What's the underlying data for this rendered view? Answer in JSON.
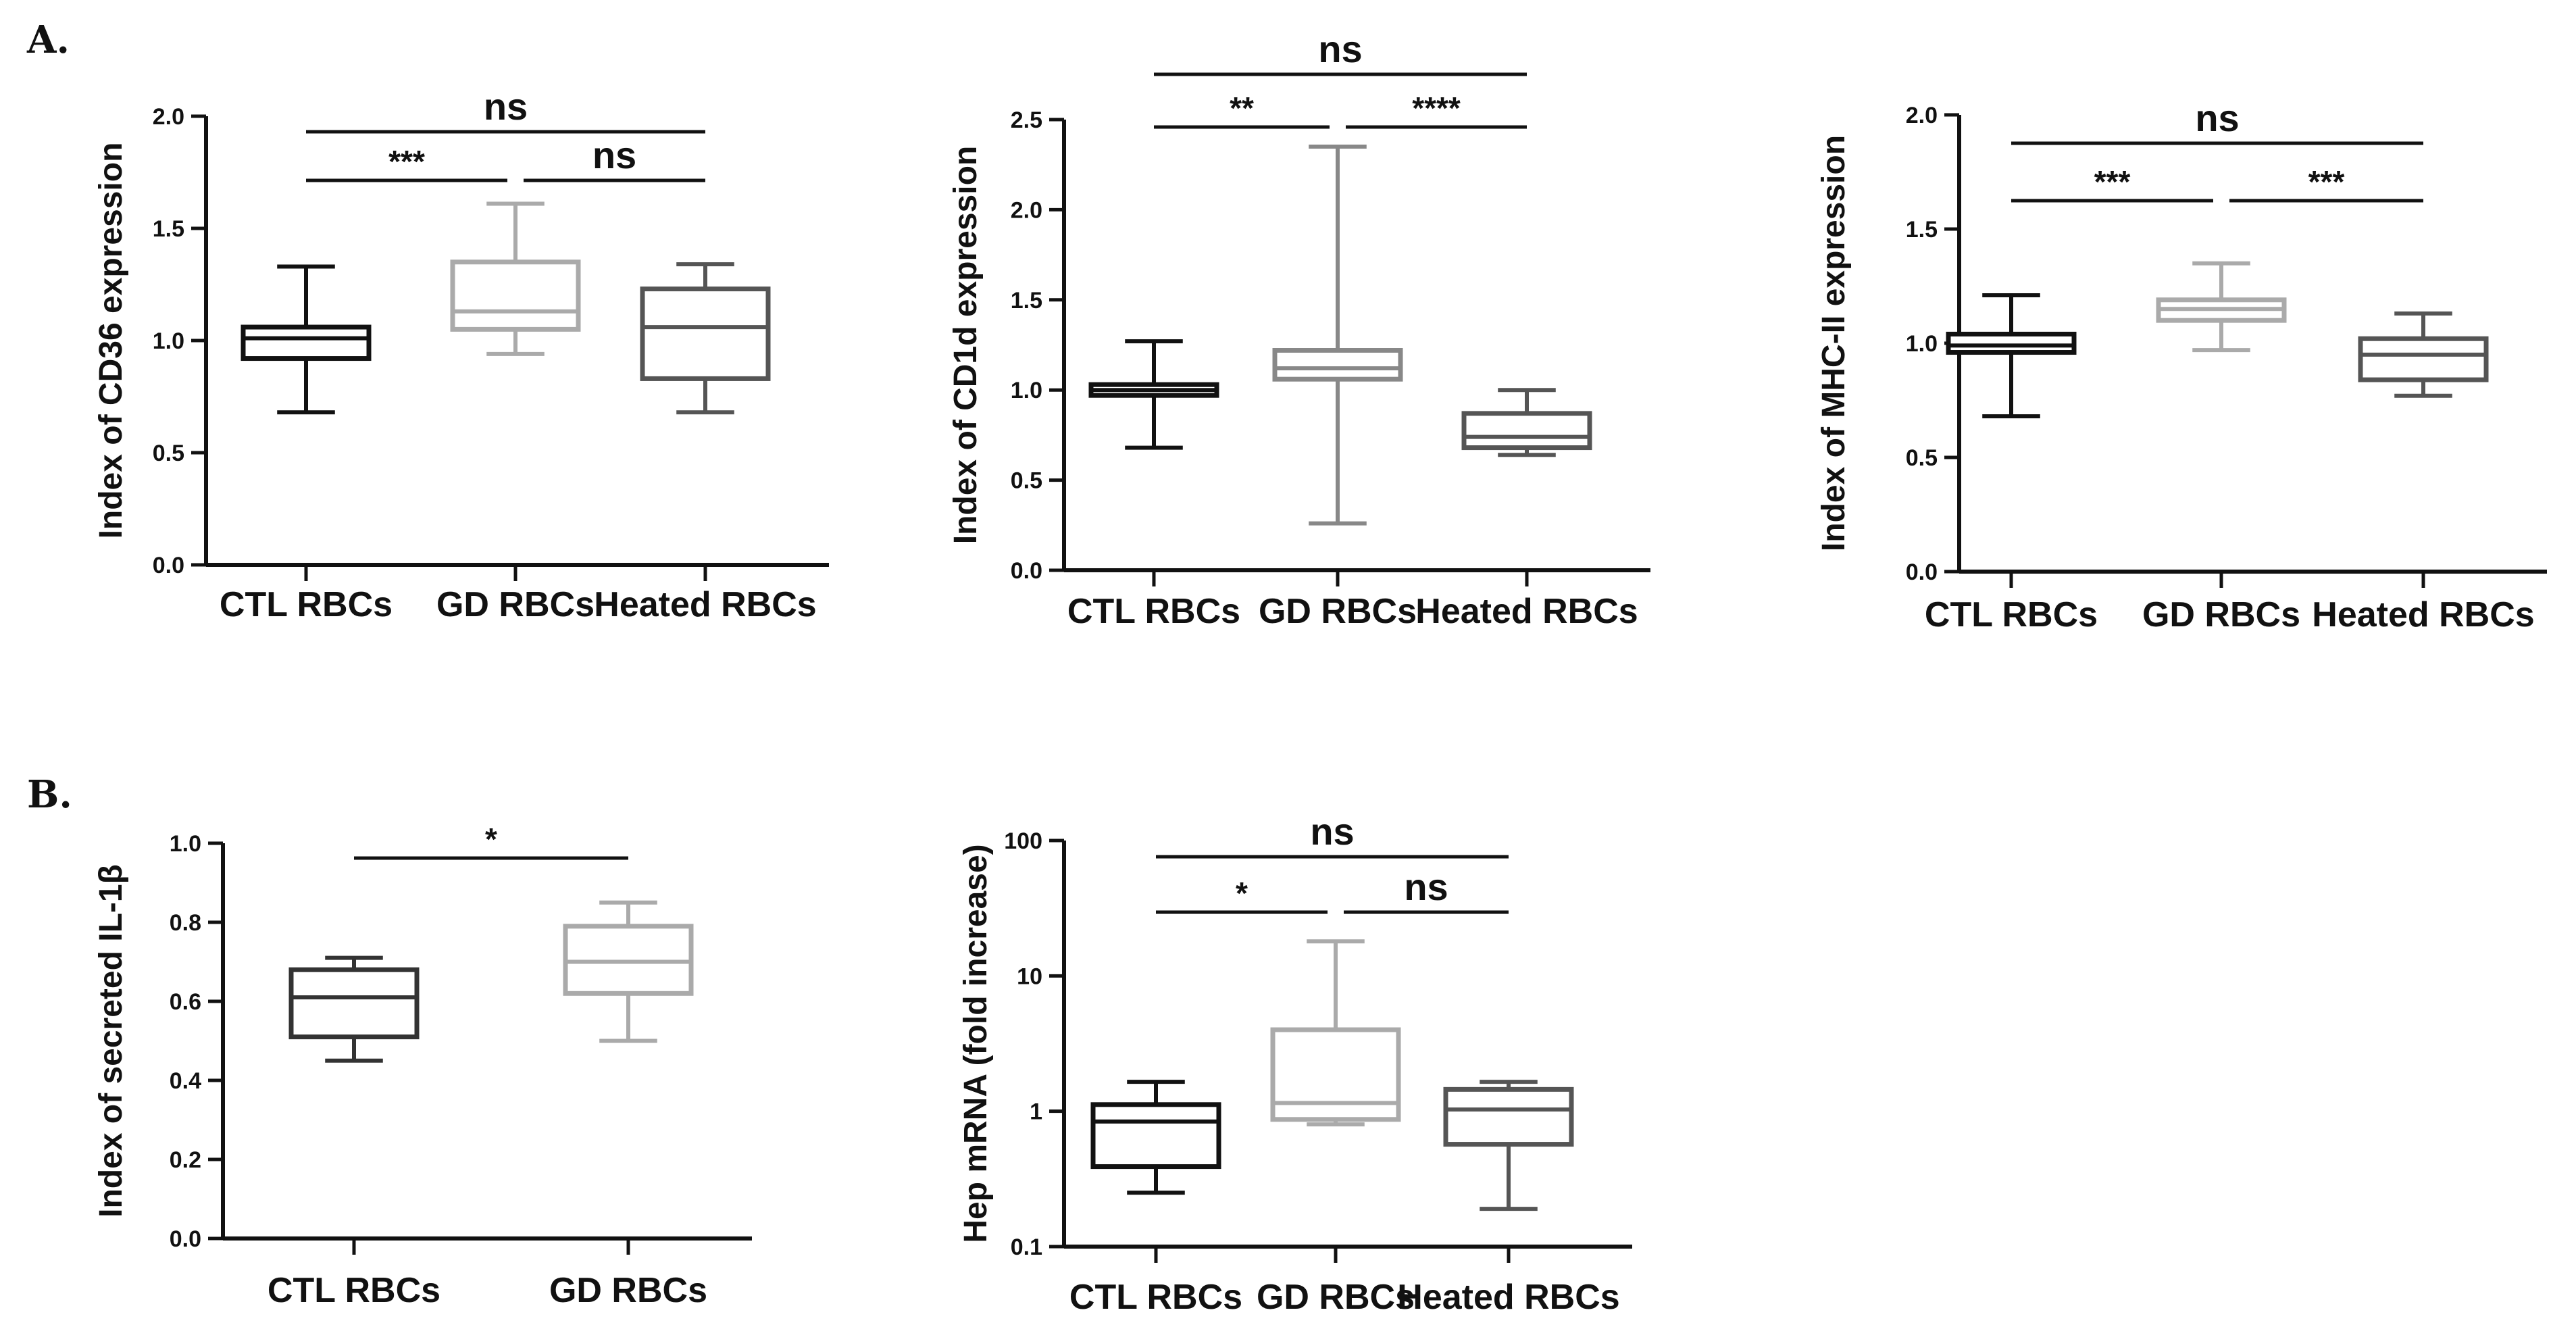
{
  "panels": [
    {
      "label": "A."
    },
    {
      "label": "B."
    }
  ],
  "chart_data": [
    {
      "type": "boxplot",
      "panel": "A.",
      "ylabel": "Index of CD36 expression",
      "scale": "linear",
      "ylim": [
        0.0,
        2.0
      ],
      "yticks": [
        "0.0",
        "0.5",
        "1.0",
        "1.5",
        "2.0"
      ],
      "categories": [
        "CTL RBCs",
        "GD RBCs",
        "Heated RBCs"
      ],
      "boxes": [
        {
          "min": 0.68,
          "q1": 0.92,
          "median": 1.01,
          "q3": 1.06,
          "max": 1.33,
          "color": "#111111"
        },
        {
          "min": 0.94,
          "q1": 1.05,
          "median": 1.13,
          "q3": 1.35,
          "max": 1.61,
          "color": "#aaaaaa"
        },
        {
          "min": 0.68,
          "q1": 0.83,
          "median": 1.06,
          "q3": 1.23,
          "max": 1.34,
          "color": "#555555"
        }
      ],
      "brackets": [
        {
          "from": 0,
          "to": 2,
          "label": "ns",
          "level": 2
        },
        {
          "from": 0,
          "to": 1,
          "label": "***",
          "level": 1
        },
        {
          "from": 1,
          "to": 2,
          "label": "ns",
          "level": 1
        }
      ]
    },
    {
      "type": "boxplot",
      "panel": "A.",
      "ylabel": "Index of CD1d expression",
      "scale": "linear",
      "ylim": [
        0.0,
        2.5
      ],
      "yticks": [
        "0.0",
        "0.5",
        "1.0",
        "1.5",
        "2.0",
        "2.5"
      ],
      "categories": [
        "CTL RBCs",
        "GD RBCs",
        "Heated RBCs"
      ],
      "boxes": [
        {
          "min": 0.68,
          "q1": 0.97,
          "median": 1.0,
          "q3": 1.03,
          "max": 1.27,
          "color": "#111111"
        },
        {
          "min": 0.26,
          "q1": 1.06,
          "median": 1.12,
          "q3": 1.22,
          "max": 2.35,
          "color": "#888888"
        },
        {
          "min": 0.64,
          "q1": 0.68,
          "median": 0.74,
          "q3": 0.87,
          "max": 1.0,
          "color": "#555555"
        }
      ],
      "brackets": [
        {
          "from": 0,
          "to": 2,
          "label": "ns",
          "level": 2
        },
        {
          "from": 0,
          "to": 1,
          "label": "**",
          "level": 1
        },
        {
          "from": 1,
          "to": 2,
          "label": "****",
          "level": 1
        }
      ]
    },
    {
      "type": "boxplot",
      "panel": "A.",
      "ylabel": "Index of MHC-II expression",
      "scale": "linear",
      "ylim": [
        0.0,
        2.0
      ],
      "yticks": [
        "0.0",
        "0.5",
        "1.0",
        "1.5",
        "2.0"
      ],
      "categories": [
        "CTL RBCs",
        "GD RBCs",
        "Heated RBCs"
      ],
      "boxes": [
        {
          "min": 0.68,
          "q1": 0.96,
          "median": 0.99,
          "q3": 1.04,
          "max": 1.21,
          "color": "#111111"
        },
        {
          "min": 0.97,
          "q1": 1.1,
          "median": 1.15,
          "q3": 1.19,
          "max": 1.35,
          "color": "#aaaaaa"
        },
        {
          "min": 0.77,
          "q1": 0.84,
          "median": 0.95,
          "q3": 1.02,
          "max": 1.13,
          "color": "#555555"
        }
      ],
      "brackets": [
        {
          "from": 0,
          "to": 2,
          "label": "ns",
          "level": 2
        },
        {
          "from": 0,
          "to": 1,
          "label": "***",
          "level": 1
        },
        {
          "from": 1,
          "to": 2,
          "label": "***",
          "level": 1
        }
      ]
    },
    {
      "type": "boxplot",
      "panel": "B.",
      "ylabel": "Index of secreted IL-1β",
      "scale": "linear",
      "ylim": [
        0.0,
        1.0
      ],
      "yticks": [
        "0.0",
        "0.2",
        "0.4",
        "0.6",
        "0.8",
        "1.0"
      ],
      "categories": [
        "CTL RBCs",
        "GD RBCs"
      ],
      "boxes": [
        {
          "min": 0.45,
          "q1": 0.51,
          "median": 0.61,
          "q3": 0.68,
          "max": 0.71,
          "color": "#333333"
        },
        {
          "min": 0.5,
          "q1": 0.62,
          "median": 0.7,
          "q3": 0.79,
          "max": 0.85,
          "color": "#aaaaaa"
        }
      ],
      "brackets": [
        {
          "from": 0,
          "to": 1,
          "label": "*",
          "level": 1
        }
      ]
    },
    {
      "type": "boxplot",
      "panel": "B.",
      "ylabel": "Hep mRNA (fold increase)",
      "scale": "log",
      "ylim": [
        0.1,
        100
      ],
      "yticks": [
        "0.1",
        "1",
        "10",
        "100"
      ],
      "categories": [
        "CTL RBCs",
        "GD RBCs",
        "Heated RBCs"
      ],
      "boxes": [
        {
          "min": 0.25,
          "q1": 0.39,
          "median": 0.84,
          "q3": 1.12,
          "max": 1.65,
          "color": "#111111"
        },
        {
          "min": 0.8,
          "q1": 0.87,
          "median": 1.15,
          "q3": 4.0,
          "max": 18,
          "color": "#aaaaaa"
        },
        {
          "min": 0.19,
          "q1": 0.57,
          "median": 1.03,
          "q3": 1.45,
          "max": 1.65,
          "color": "#555555"
        }
      ],
      "brackets": [
        {
          "from": 0,
          "to": 2,
          "label": "ns",
          "level": 2
        },
        {
          "from": 0,
          "to": 1,
          "label": "*",
          "level": 1
        },
        {
          "from": 1,
          "to": 2,
          "label": "ns",
          "level": 1
        }
      ]
    }
  ]
}
